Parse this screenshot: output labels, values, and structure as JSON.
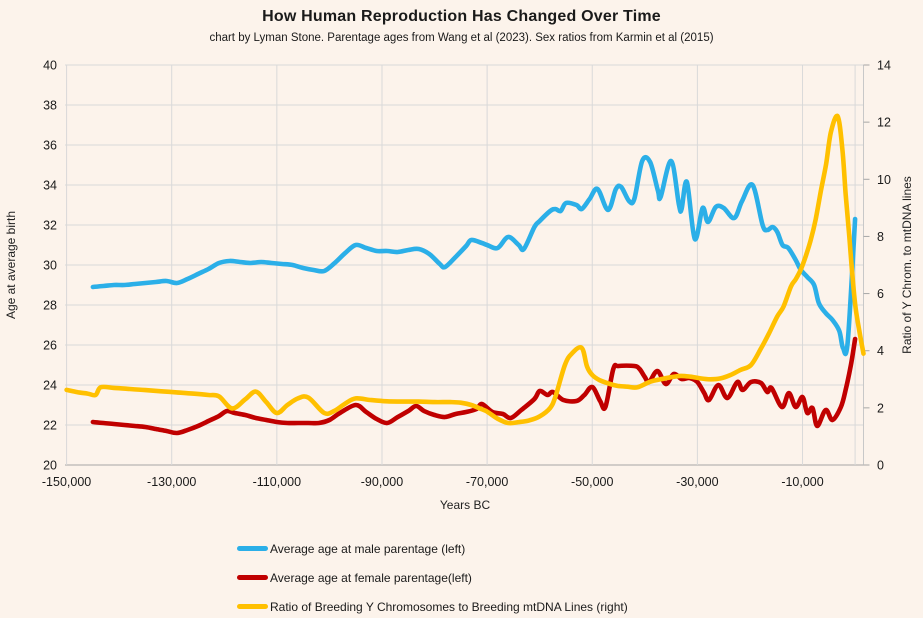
{
  "colors": {
    "background": "#fcf3eb",
    "grid": "#d9d9d9",
    "axis_line": "#a6a6a6",
    "border": "#c8c8c8",
    "text": "#1a1a1a"
  },
  "chart_data": {
    "type": "line",
    "title": "How Human Reproduction Has Changed Over Time",
    "subtitle": "chart by Lyman Stone. Parentage ages from Wang et al (2023). Sex ratios from Karmin et al (2015)",
    "xlabel": "Years BC",
    "ylabel_left": "Age at average birth",
    "ylabel_right": "Ratio of Y Chrom. to mtDNA lines",
    "x_domain": [
      -150300,
      1600
    ],
    "x_grid_step": 20000,
    "x_ticks": [
      {
        "value": -150000,
        "label": "-150,000"
      },
      {
        "value": -130000,
        "label": "-130,000"
      },
      {
        "value": -110000,
        "label": "-110,000"
      },
      {
        "value": -90000,
        "label": "-90,000"
      },
      {
        "value": -70000,
        "label": "-70,000"
      },
      {
        "value": -50000,
        "label": "-50,000"
      },
      {
        "value": -30000,
        "label": "-30,000"
      },
      {
        "value": -10000,
        "label": "-10,000"
      }
    ],
    "x_grid_values": [
      -150000,
      -130000,
      -110000,
      -90000,
      -70000,
      -50000,
      -30000,
      -10000,
      0
    ],
    "y_left": {
      "min": 20,
      "max": 40,
      "ticks": [
        20,
        22,
        24,
        26,
        28,
        30,
        32,
        34,
        36,
        38,
        40
      ]
    },
    "y_right": {
      "min": 0,
      "max": 14,
      "ticks": [
        0,
        2,
        4,
        6,
        8,
        10,
        12,
        14
      ]
    },
    "grid_on": true,
    "legend_position": "bottom-left",
    "series": [
      {
        "name": "male-parentage",
        "label": "Average age at male parentage (left)",
        "axis": "left",
        "color": "#2bafe8",
        "points": [
          [
            -145000,
            28.9
          ],
          [
            -143000,
            28.95
          ],
          [
            -141000,
            29.0
          ],
          [
            -139000,
            29.0
          ],
          [
            -137000,
            29.05
          ],
          [
            -135000,
            29.1
          ],
          [
            -133000,
            29.15
          ],
          [
            -131000,
            29.2
          ],
          [
            -129000,
            29.1
          ],
          [
            -127000,
            29.3
          ],
          [
            -125000,
            29.55
          ],
          [
            -123000,
            29.8
          ],
          [
            -121000,
            30.1
          ],
          [
            -119000,
            30.2
          ],
          [
            -117000,
            30.15
          ],
          [
            -115000,
            30.1
          ],
          [
            -113000,
            30.15
          ],
          [
            -111000,
            30.1
          ],
          [
            -109000,
            30.05
          ],
          [
            -107000,
            30.0
          ],
          [
            -105000,
            29.85
          ],
          [
            -103000,
            29.75
          ],
          [
            -101000,
            29.7
          ],
          [
            -99000,
            30.1
          ],
          [
            -97000,
            30.6
          ],
          [
            -95000,
            31.0
          ],
          [
            -93000,
            30.85
          ],
          [
            -91000,
            30.7
          ],
          [
            -89000,
            30.7
          ],
          [
            -87000,
            30.65
          ],
          [
            -85000,
            30.75
          ],
          [
            -83000,
            30.8
          ],
          [
            -81000,
            30.55
          ],
          [
            -79000,
            30.05
          ],
          [
            -78000,
            29.9
          ],
          [
            -76000,
            30.4
          ],
          [
            -74000,
            30.95
          ],
          [
            -73000,
            31.25
          ],
          [
            -71000,
            31.1
          ],
          [
            -70000,
            31.0
          ],
          [
            -68000,
            30.85
          ],
          [
            -66000,
            31.4
          ],
          [
            -64000,
            31.0
          ],
          [
            -63000,
            30.8
          ],
          [
            -61000,
            31.9
          ],
          [
            -60000,
            32.2
          ],
          [
            -58000,
            32.7
          ],
          [
            -57000,
            32.8
          ],
          [
            -56000,
            32.7
          ],
          [
            -55000,
            33.1
          ],
          [
            -53000,
            33.0
          ],
          [
            -52000,
            32.8
          ],
          [
            -50500,
            33.3
          ],
          [
            -49000,
            33.8
          ],
          [
            -47000,
            32.75
          ],
          [
            -45500,
            33.8
          ],
          [
            -44500,
            33.9
          ],
          [
            -43000,
            33.2
          ],
          [
            -42000,
            33.3
          ],
          [
            -40500,
            35.2
          ],
          [
            -39000,
            35.15
          ],
          [
            -37500,
            33.7
          ],
          [
            -37000,
            33.4
          ],
          [
            -35000,
            35.2
          ],
          [
            -33500,
            33.0
          ],
          [
            -33000,
            32.8
          ],
          [
            -32000,
            34.15
          ],
          [
            -30500,
            31.3
          ],
          [
            -29000,
            32.85
          ],
          [
            -28000,
            32.15
          ],
          [
            -26500,
            32.9
          ],
          [
            -25000,
            32.85
          ],
          [
            -23000,
            32.35
          ],
          [
            -21500,
            33.2
          ],
          [
            -19500,
            34.0
          ],
          [
            -17600,
            32.0
          ],
          [
            -16700,
            31.75
          ],
          [
            -15700,
            31.9
          ],
          [
            -14800,
            31.65
          ],
          [
            -13800,
            31.0
          ],
          [
            -12700,
            30.85
          ],
          [
            -11300,
            30.25
          ],
          [
            -10300,
            29.75
          ],
          [
            -9100,
            29.4
          ],
          [
            -7800,
            29.0
          ],
          [
            -6900,
            28.1
          ],
          [
            -5600,
            27.6
          ],
          [
            -4300,
            27.25
          ],
          [
            -3000,
            26.7
          ],
          [
            -2300,
            25.85
          ],
          [
            -1400,
            26.15
          ],
          [
            0,
            32.3
          ]
        ]
      },
      {
        "name": "female-parentage",
        "label": "Average age at female parentage(left)",
        "axis": "left",
        "color": "#c00000",
        "points": [
          [
            -145000,
            22.15
          ],
          [
            -143000,
            22.1
          ],
          [
            -141000,
            22.05
          ],
          [
            -139000,
            22.0
          ],
          [
            -137000,
            21.95
          ],
          [
            -135000,
            21.9
          ],
          [
            -133000,
            21.8
          ],
          [
            -131000,
            21.7
          ],
          [
            -129000,
            21.6
          ],
          [
            -127000,
            21.75
          ],
          [
            -125000,
            21.95
          ],
          [
            -123000,
            22.2
          ],
          [
            -121000,
            22.45
          ],
          [
            -119500,
            22.7
          ],
          [
            -118000,
            22.6
          ],
          [
            -116000,
            22.5
          ],
          [
            -114000,
            22.35
          ],
          [
            -112000,
            22.25
          ],
          [
            -110000,
            22.15
          ],
          [
            -108000,
            22.1
          ],
          [
            -106000,
            22.1
          ],
          [
            -104000,
            22.1
          ],
          [
            -102000,
            22.1
          ],
          [
            -100000,
            22.25
          ],
          [
            -98000,
            22.6
          ],
          [
            -95000,
            23.0
          ],
          [
            -93000,
            22.65
          ],
          [
            -91000,
            22.3
          ],
          [
            -89000,
            22.1
          ],
          [
            -87000,
            22.4
          ],
          [
            -85000,
            22.7
          ],
          [
            -83500,
            22.95
          ],
          [
            -82000,
            22.7
          ],
          [
            -80000,
            22.5
          ],
          [
            -78000,
            22.4
          ],
          [
            -76000,
            22.55
          ],
          [
            -74000,
            22.65
          ],
          [
            -72000,
            22.8
          ],
          [
            -71000,
            23.05
          ],
          [
            -69000,
            22.65
          ],
          [
            -67000,
            22.55
          ],
          [
            -65500,
            22.35
          ],
          [
            -63500,
            22.75
          ],
          [
            -61000,
            23.3
          ],
          [
            -60000,
            23.7
          ],
          [
            -58500,
            23.5
          ],
          [
            -57500,
            23.65
          ],
          [
            -55500,
            23.25
          ],
          [
            -53000,
            23.2
          ],
          [
            -51500,
            23.5
          ],
          [
            -50000,
            23.9
          ],
          [
            -48500,
            23.2
          ],
          [
            -47500,
            22.9
          ],
          [
            -46000,
            24.8
          ],
          [
            -45000,
            24.95
          ],
          [
            -42000,
            24.95
          ],
          [
            -41000,
            24.8
          ],
          [
            -40000,
            24.4
          ],
          [
            -39200,
            24.15
          ],
          [
            -37600,
            24.7
          ],
          [
            -36000,
            24.05
          ],
          [
            -34500,
            24.55
          ],
          [
            -33000,
            24.3
          ],
          [
            -31500,
            24.35
          ],
          [
            -30000,
            24.15
          ],
          [
            -28700,
            23.6
          ],
          [
            -27800,
            23.25
          ],
          [
            -26000,
            24.0
          ],
          [
            -24300,
            23.35
          ],
          [
            -22400,
            24.15
          ],
          [
            -21400,
            23.75
          ],
          [
            -19800,
            24.15
          ],
          [
            -17900,
            24.1
          ],
          [
            -16700,
            23.65
          ],
          [
            -15900,
            23.85
          ],
          [
            -13900,
            22.9
          ],
          [
            -12600,
            23.6
          ],
          [
            -11300,
            22.9
          ],
          [
            -10000,
            23.4
          ],
          [
            -9100,
            22.6
          ],
          [
            -8100,
            22.85
          ],
          [
            -7200,
            21.95
          ],
          [
            -5600,
            22.75
          ],
          [
            -4300,
            22.25
          ],
          [
            -2700,
            22.9
          ],
          [
            -1800,
            23.75
          ],
          [
            -800,
            25.0
          ],
          [
            0,
            26.3
          ]
        ]
      },
      {
        "name": "y-mtdna-ratio",
        "label": "Ratio of Breeding Y Chromosomes to Breeding mtDNA Lines (right)",
        "axis": "right",
        "color": "#ffc000",
        "points": [
          [
            -150000,
            2.63
          ],
          [
            -148000,
            2.55
          ],
          [
            -146000,
            2.5
          ],
          [
            -144500,
            2.45
          ],
          [
            -143500,
            2.72
          ],
          [
            -141000,
            2.7
          ],
          [
            -138000,
            2.66
          ],
          [
            -135000,
            2.62
          ],
          [
            -132000,
            2.58
          ],
          [
            -129000,
            2.54
          ],
          [
            -126000,
            2.5
          ],
          [
            -123000,
            2.45
          ],
          [
            -121000,
            2.4
          ],
          [
            -118500,
            1.98
          ],
          [
            -116000,
            2.3
          ],
          [
            -114000,
            2.57
          ],
          [
            -112000,
            2.2
          ],
          [
            -110000,
            1.82
          ],
          [
            -108000,
            2.1
          ],
          [
            -106000,
            2.33
          ],
          [
            -104000,
            2.36
          ],
          [
            -101000,
            1.82
          ],
          [
            -99000,
            1.9
          ],
          [
            -97000,
            2.15
          ],
          [
            -95000,
            2.33
          ],
          [
            -92000,
            2.27
          ],
          [
            -89000,
            2.23
          ],
          [
            -86000,
            2.22
          ],
          [
            -83000,
            2.22
          ],
          [
            -80000,
            2.2
          ],
          [
            -77000,
            2.2
          ],
          [
            -75000,
            2.18
          ],
          [
            -73000,
            2.1
          ],
          [
            -71000,
            1.95
          ],
          [
            -70000,
            1.87
          ],
          [
            -68000,
            1.62
          ],
          [
            -66000,
            1.47
          ],
          [
            -64000,
            1.5
          ],
          [
            -62000,
            1.56
          ],
          [
            -60000,
            1.7
          ],
          [
            -58000,
            2.0
          ],
          [
            -57000,
            2.4
          ],
          [
            -55200,
            3.5
          ],
          [
            -53900,
            3.9
          ],
          [
            -52000,
            4.1
          ],
          [
            -51000,
            3.45
          ],
          [
            -50000,
            3.15
          ],
          [
            -48700,
            2.98
          ],
          [
            -47000,
            2.86
          ],
          [
            -45200,
            2.77
          ],
          [
            -43300,
            2.74
          ],
          [
            -41400,
            2.72
          ],
          [
            -38900,
            2.92
          ],
          [
            -37000,
            3.0
          ],
          [
            -35100,
            3.07
          ],
          [
            -33200,
            3.12
          ],
          [
            -31300,
            3.09
          ],
          [
            -29400,
            3.03
          ],
          [
            -27500,
            3.0
          ],
          [
            -25600,
            3.03
          ],
          [
            -23700,
            3.15
          ],
          [
            -21800,
            3.33
          ],
          [
            -19800,
            3.5
          ],
          [
            -17900,
            4.08
          ],
          [
            -16400,
            4.6
          ],
          [
            -14800,
            5.2
          ],
          [
            -13600,
            5.55
          ],
          [
            -12200,
            6.25
          ],
          [
            -11300,
            6.5
          ],
          [
            -10300,
            6.85
          ],
          [
            -9400,
            7.3
          ],
          [
            -8400,
            7.9
          ],
          [
            -7500,
            8.6
          ],
          [
            -6500,
            9.6
          ],
          [
            -5500,
            10.55
          ],
          [
            -4600,
            11.65
          ],
          [
            -3300,
            12.2
          ],
          [
            -2400,
            11.0
          ],
          [
            -1800,
            9.5
          ],
          [
            -1100,
            8.0
          ],
          [
            -500,
            6.6
          ],
          [
            100,
            5.5
          ],
          [
            900,
            4.6
          ],
          [
            1600,
            3.9
          ]
        ]
      }
    ]
  }
}
